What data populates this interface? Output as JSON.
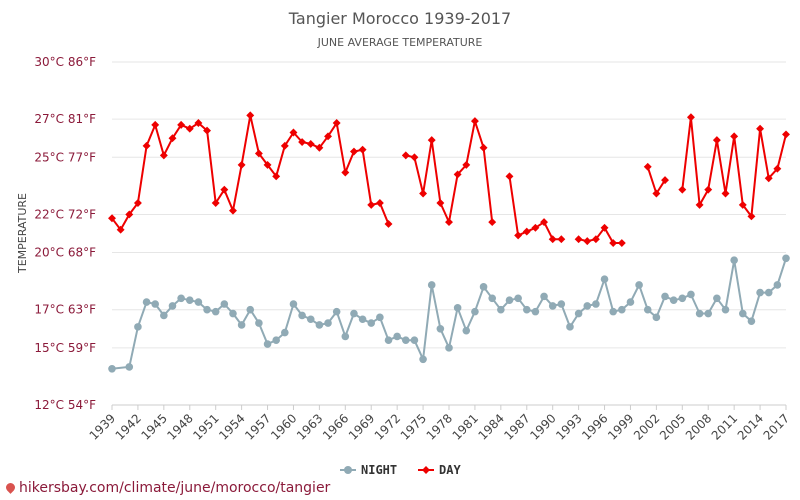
{
  "chart_data": {
    "type": "line",
    "title": "Tangier Morocco 1939-2017",
    "subtitle": "JUNE AVERAGE TEMPERATURE",
    "ylabel": "TEMPERATURE",
    "xlim": [
      1939,
      2017
    ],
    "ylim": [
      12,
      30
    ],
    "yticks": [
      {
        "value": 12,
        "label": "12°C 54°F"
      },
      {
        "value": 15,
        "label": "15°C 59°F"
      },
      {
        "value": 17,
        "label": "17°C 63°F"
      },
      {
        "value": 20,
        "label": "20°C 68°F"
      },
      {
        "value": 22,
        "label": "22°C 72°F"
      },
      {
        "value": 25,
        "label": "25°C 77°F"
      },
      {
        "value": 27,
        "label": "27°C 81°F"
      },
      {
        "value": 30,
        "label": "30°C 86°F"
      }
    ],
    "xticks": [
      1939,
      1942,
      1945,
      1948,
      1951,
      1954,
      1957,
      1960,
      1963,
      1966,
      1969,
      1972,
      1975,
      1978,
      1981,
      1984,
      1987,
      1990,
      1993,
      1996,
      1999,
      2002,
      2005,
      2008,
      2011,
      2014,
      2017
    ],
    "grid": true,
    "legend_position": "bottom-center",
    "series": [
      {
        "name": "NIGHT",
        "color": "#90aab5",
        "x": [
          1939,
          1941,
          1942,
          1943,
          1944,
          1945,
          1946,
          1947,
          1948,
          1949,
          1950,
          1951,
          1952,
          1953,
          1954,
          1955,
          1956,
          1957,
          1958,
          1959,
          1960,
          1961,
          1962,
          1963,
          1964,
          1965,
          1966,
          1967,
          1968,
          1969,
          1970,
          1971,
          1972,
          1973,
          1974,
          1975,
          1976,
          1977,
          1978,
          1979,
          1980,
          1981,
          1982,
          1983,
          1984,
          1985,
          1986,
          1987,
          1988,
          1989,
          1990,
          1991,
          1992,
          1993,
          1994,
          1995,
          1996,
          1997,
          1998,
          1999,
          2000,
          2001,
          2002,
          2003,
          2004,
          2005,
          2006,
          2007,
          2008,
          2009,
          2010,
          2011,
          2012,
          2013,
          2014,
          2015,
          2016,
          2017
        ],
        "y": [
          13.9,
          14.0,
          16.1,
          17.4,
          17.3,
          16.7,
          17.2,
          17.6,
          17.5,
          17.4,
          17.0,
          16.9,
          17.3,
          16.8,
          16.2,
          17.0,
          16.3,
          15.2,
          15.4,
          15.8,
          17.3,
          16.7,
          16.5,
          16.2,
          16.3,
          16.9,
          15.6,
          16.8,
          16.5,
          16.3,
          16.6,
          15.4,
          15.6,
          15.4,
          15.4,
          14.4,
          18.3,
          16.0,
          15.0,
          17.1,
          15.9,
          16.9,
          18.2,
          17.6,
          17.0,
          17.5,
          17.6,
          17.0,
          16.9,
          17.7,
          17.2,
          17.3,
          16.1,
          16.8,
          17.2,
          17.3,
          18.6,
          16.9,
          17.0,
          17.4,
          18.3,
          17.0,
          16.6,
          17.7,
          17.5,
          17.6,
          17.8,
          16.8,
          16.8,
          17.6,
          17.0,
          19.6,
          16.8,
          16.4,
          17.9,
          17.9,
          18.3,
          19.7
        ]
      },
      {
        "name": "DAY",
        "color": "#ee0000",
        "x": [
          1939,
          1940,
          1941,
          1942,
          1943,
          1944,
          1945,
          1946,
          1947,
          1948,
          1949,
          1950,
          1951,
          1952,
          1953,
          1954,
          1955,
          1956,
          1957,
          1958,
          1959,
          1960,
          1961,
          1962,
          1963,
          1964,
          1965,
          1966,
          1967,
          1968,
          1969,
          1970,
          1971,
          null,
          1973,
          1974,
          1975,
          1976,
          1977,
          1978,
          1979,
          1980,
          1981,
          1982,
          1983,
          null,
          1985,
          1986,
          1987,
          1988,
          1989,
          1990,
          1991,
          null,
          1993,
          1994,
          1995,
          1996,
          1997,
          1998,
          null,
          2001,
          2002,
          2003,
          null,
          2005,
          2006,
          2007,
          2008,
          2009,
          2010,
          2011,
          2012,
          2013,
          2014,
          2015,
          2016,
          2017
        ],
        "y": [
          21.8,
          21.2,
          22.0,
          22.6,
          25.6,
          26.7,
          25.1,
          26.0,
          26.7,
          26.5,
          26.8,
          26.4,
          22.6,
          23.3,
          22.2,
          24.6,
          27.2,
          25.2,
          24.6,
          24.0,
          25.6,
          26.3,
          25.8,
          25.7,
          25.5,
          26.1,
          26.8,
          24.2,
          25.3,
          25.4,
          22.5,
          22.6,
          21.5,
          null,
          25.1,
          25.0,
          23.1,
          25.9,
          22.6,
          21.6,
          24.1,
          24.6,
          26.9,
          25.5,
          21.6,
          null,
          24.0,
          20.9,
          21.1,
          21.3,
          21.6,
          20.7,
          20.7,
          null,
          20.7,
          20.6,
          20.7,
          21.3,
          20.5,
          20.5,
          null,
          24.5,
          23.1,
          23.8,
          null,
          23.3,
          27.1,
          22.5,
          23.3,
          25.9,
          23.1,
          26.1,
          22.5,
          21.9,
          26.5,
          23.9,
          24.4,
          26.2
        ]
      }
    ]
  },
  "watermark": "hikersbay.com/climate/june/morocco/tangier"
}
